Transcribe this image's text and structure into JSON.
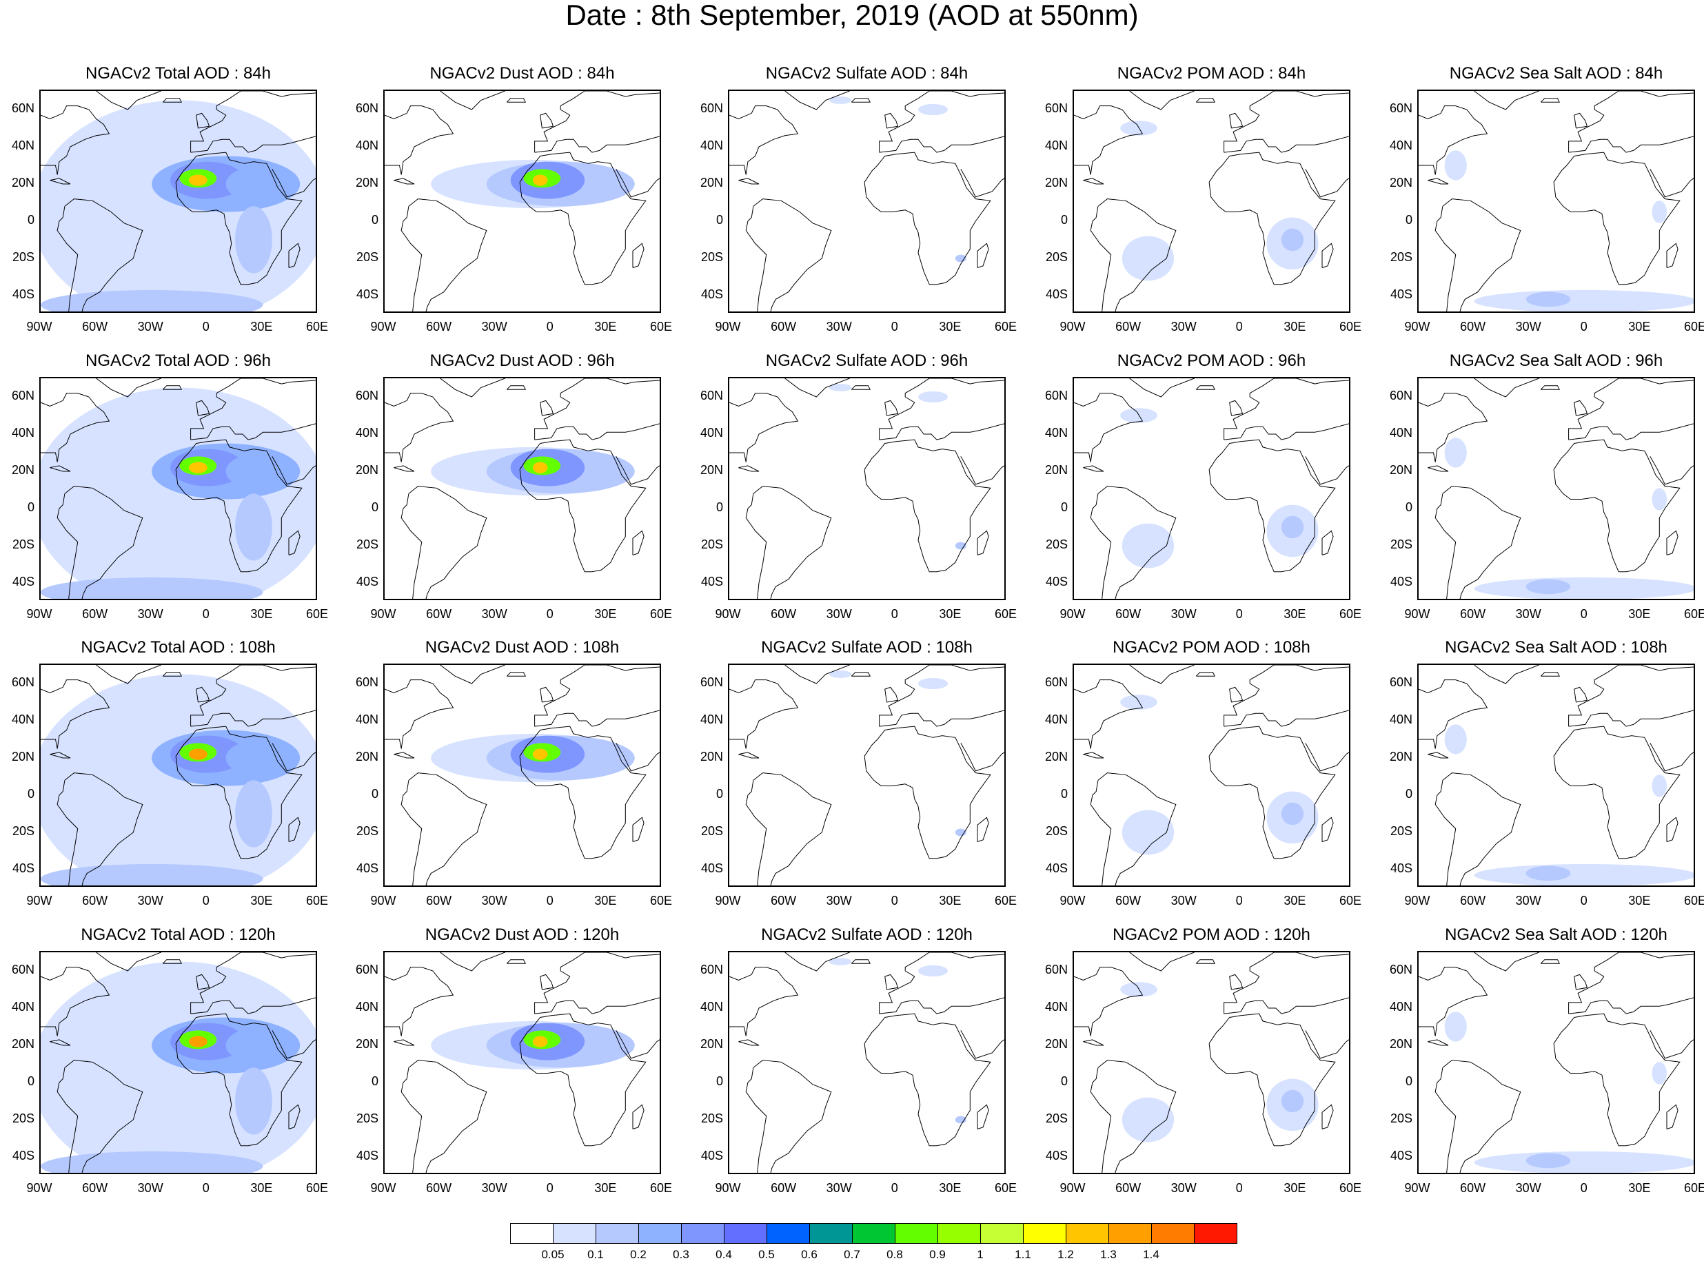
{
  "title": "Date : 8th September, 2019 (AOD at 550nm)",
  "lat_ticks": [
    "60N",
    "40N",
    "20N",
    "0",
    "20S",
    "40S"
  ],
  "lon_ticks": [
    "90W",
    "60W",
    "30W",
    "0",
    "30E",
    "60E"
  ],
  "map_extent": {
    "lon": [
      -90,
      60
    ],
    "lat": [
      -50,
      70
    ]
  },
  "rows": [
    {
      "forecast": "84h",
      "titles": [
        "NGACv2 Total AOD : 84h",
        "NGACv2 Dust AOD : 84h",
        "NGACv2 Sulfate AOD : 84h",
        "NGACv2 POM AOD : 84h",
        "NGACv2 Sea Salt AOD : 84h"
      ]
    },
    {
      "forecast": "96h",
      "titles": [
        "NGACv2 Total AOD : 96h",
        "NGACv2 Dust AOD : 96h",
        "NGACv2 Sulfate AOD : 96h",
        "NGACv2 POM AOD : 96h",
        "NGACv2 Sea Salt AOD : 96h"
      ]
    },
    {
      "forecast": "108h",
      "titles": [
        "NGACv2 Total AOD : 108h",
        "NGACv2 Dust AOD : 108h",
        "NGACv2 Sulfate AOD : 108h",
        "NGACv2 POM AOD : 108h",
        "NGACv2 Sea Salt AOD : 108h"
      ]
    },
    {
      "forecast": "120h",
      "titles": [
        "NGACv2 Total AOD : 120h",
        "NGACv2 Dust AOD : 120h",
        "NGACv2 Sulfate AOD : 120h",
        "NGACv2 POM AOD : 120h",
        "NGACv2 Sea Salt  AOD : 120h"
      ]
    }
  ],
  "colorbar": {
    "colors": [
      "#ffffff",
      "#d6e2ff",
      "#b5c9ff",
      "#8eb2ff",
      "#7f96ff",
      "#6370ff",
      "#0063ff",
      "#009696",
      "#00c633",
      "#63ff00",
      "#96ff00",
      "#c6ff33",
      "#ffff00",
      "#ffc600",
      "#ffa000",
      "#ff7c00",
      "#ff1900"
    ],
    "labels": [
      "0.05",
      "0.1",
      "0.2",
      "0.3",
      "0.4",
      "0.5",
      "0.6",
      "0.7",
      "0.8",
      "0.9",
      "1",
      "1.1",
      "1.2",
      "1.3",
      "1.4"
    ]
  }
}
